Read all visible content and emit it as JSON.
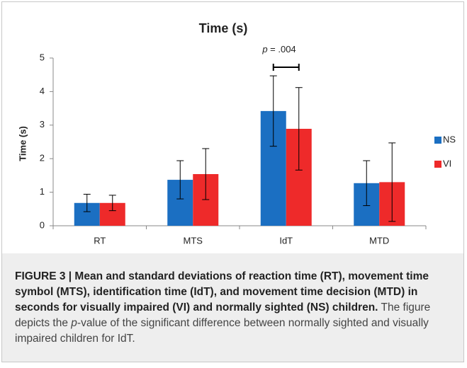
{
  "chart_data": {
    "type": "bar",
    "title": "Time (s)",
    "y_label": "Time (s)",
    "categories": [
      "RT",
      "MTS",
      "IdT",
      "MTD"
    ],
    "series": [
      {
        "name": "NS",
        "color": "#1b6fc2",
        "values": [
          0.68,
          1.37,
          3.42,
          1.27
        ],
        "errors": [
          0.26,
          0.57,
          1.05,
          0.67
        ]
      },
      {
        "name": "VI",
        "color": "#ee2a2a",
        "values": [
          0.68,
          1.54,
          2.89,
          1.3
        ],
        "errors": [
          0.23,
          0.76,
          1.23,
          1.17
        ]
      }
    ],
    "ylim": [
      0,
      5
    ],
    "yticks": [
      0,
      1,
      2,
      3,
      4,
      5
    ],
    "grid": false,
    "legend": "right",
    "annotation": {
      "italic": "p",
      "text": " = .004"
    }
  },
  "caption": {
    "bold": "FIGURE 3 | Mean and standard deviations of reaction time (RT), movement time symbol (MTS), identification time (IdT), and movement time decision (MTD) in seconds for visually impaired (VI) and normally sighted (NS) children.",
    "text1": " The figure depicts the ",
    "italic": "p",
    "text2": "-value of the significant difference between normally sighted and visually impaired children for IdT."
  }
}
